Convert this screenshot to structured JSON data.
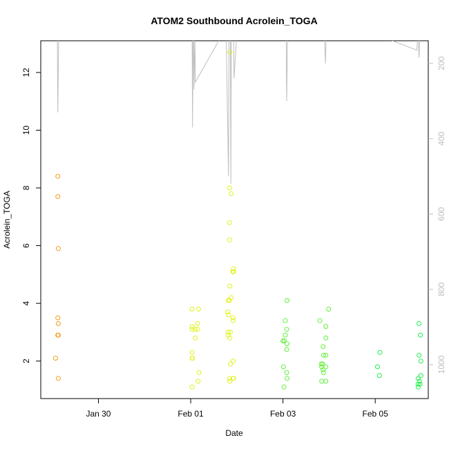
{
  "chart_data": {
    "type": "scatter",
    "title": "ATOM2 Southbound Acrolein_TOGA",
    "xlabel": "Date",
    "ylabel": "Acrolein_TOGA",
    "x_unit": "days from Jan 30",
    "xlim": [
      -1.25,
      7.15
    ],
    "ylim": [
      0.7,
      13.1
    ],
    "x_ticks": [
      {
        "value": 0,
        "label": "Jan 30"
      },
      {
        "value": 2,
        "label": "Feb 01"
      },
      {
        "value": 4,
        "label": "Feb 03"
      },
      {
        "value": 6,
        "label": "Feb 05"
      }
    ],
    "y_ticks": [
      {
        "value": 2,
        "label": "2"
      },
      {
        "value": 4,
        "label": "4"
      },
      {
        "value": 6,
        "label": "6"
      },
      {
        "value": 8,
        "label": "8"
      },
      {
        "value": 10,
        "label": "10"
      },
      {
        "value": 12,
        "label": "12"
      }
    ],
    "right_axis": {
      "description": "secondary axis (grey), reversed",
      "lim": [
        1090,
        140
      ],
      "ticks": [
        {
          "value": 200,
          "label": "200"
        },
        {
          "value": 400,
          "label": "400"
        },
        {
          "value": 600,
          "label": "600"
        },
        {
          "value": 800,
          "label": "800"
        },
        {
          "value": 1000,
          "label": "1000"
        }
      ],
      "color": "#bdbdbd",
      "series": [
        {
          "x": -0.92,
          "y": 120
        },
        {
          "x": -0.89,
          "y": 120
        },
        {
          "x": -0.88,
          "y": 330
        },
        {
          "x": -0.86,
          "y": 120
        },
        {
          "x": 1.95,
          "y": 120
        },
        {
          "x": 2.03,
          "y": 120
        },
        {
          "x": 2.04,
          "y": 370
        },
        {
          "x": 2.05,
          "y": 130
        },
        {
          "x": 2.06,
          "y": 130
        },
        {
          "x": 2.07,
          "y": 270
        },
        {
          "x": 2.09,
          "y": 120
        },
        {
          "x": 2.1,
          "y": 250
        },
        {
          "x": 2.7,
          "y": 120
        },
        {
          "x": 2.77,
          "y": 130
        },
        {
          "x": 2.82,
          "y": 500
        },
        {
          "x": 2.83,
          "y": 130
        },
        {
          "x": 2.86,
          "y": 130
        },
        {
          "x": 2.87,
          "y": 520
        },
        {
          "x": 2.88,
          "y": 130
        },
        {
          "x": 2.93,
          "y": 130
        },
        {
          "x": 2.94,
          "y": 240
        },
        {
          "x": 3.0,
          "y": 120
        },
        {
          "x": 4.05,
          "y": 120
        },
        {
          "x": 4.07,
          "y": 120
        },
        {
          "x": 4.08,
          "y": 300
        },
        {
          "x": 4.1,
          "y": 120
        },
        {
          "x": 4.9,
          "y": 120
        },
        {
          "x": 4.92,
          "y": 200
        },
        {
          "x": 4.94,
          "y": 120
        },
        {
          "x": 5.95,
          "y": 120
        },
        {
          "x": 6.9,
          "y": 165
        },
        {
          "x": 6.93,
          "y": 120
        },
        {
          "x": 6.95,
          "y": 185
        },
        {
          "x": 6.97,
          "y": 120
        }
      ]
    },
    "series": [
      {
        "color": "#f39c1a",
        "points": [
          {
            "x": -0.93,
            "y": 2.1
          },
          {
            "x": -0.88,
            "y": 8.4
          },
          {
            "x": -0.88,
            "y": 7.7
          },
          {
            "x": -0.87,
            "y": 5.9
          },
          {
            "x": -0.88,
            "y": 3.5
          },
          {
            "x": -0.87,
            "y": 3.3
          },
          {
            "x": -0.88,
            "y": 2.9
          },
          {
            "x": -0.87,
            "y": 2.9
          },
          {
            "x": -0.87,
            "y": 1.4
          }
        ]
      },
      {
        "color": "#e0f21a",
        "points": [
          {
            "x": 2.03,
            "y": 3.8
          },
          {
            "x": 2.17,
            "y": 3.8
          },
          {
            "x": 2.03,
            "y": 3.2
          },
          {
            "x": 2.03,
            "y": 3.1
          },
          {
            "x": 2.1,
            "y": 3.1
          },
          {
            "x": 2.15,
            "y": 3.3
          },
          {
            "x": 2.15,
            "y": 3.1
          },
          {
            "x": 2.1,
            "y": 2.8
          },
          {
            "x": 2.03,
            "y": 2.3
          },
          {
            "x": 2.03,
            "y": 2.1
          },
          {
            "x": 2.04,
            "y": 2.1
          },
          {
            "x": 2.18,
            "y": 1.6
          },
          {
            "x": 2.16,
            "y": 1.3
          },
          {
            "x": 2.03,
            "y": 1.1
          },
          {
            "x": 2.85,
            "y": 12.7
          },
          {
            "x": 2.84,
            "y": 8.0
          },
          {
            "x": 2.88,
            "y": 7.8
          },
          {
            "x": 2.84,
            "y": 6.8
          },
          {
            "x": 2.84,
            "y": 6.2
          },
          {
            "x": 2.93,
            "y": 5.2
          },
          {
            "x": 2.91,
            "y": 5.1
          },
          {
            "x": 2.93,
            "y": 5.1
          },
          {
            "x": 2.85,
            "y": 4.6
          },
          {
            "x": 2.88,
            "y": 4.2
          },
          {
            "x": 2.81,
            "y": 4.1
          },
          {
            "x": 2.84,
            "y": 4.1
          },
          {
            "x": 2.8,
            "y": 3.7
          },
          {
            "x": 2.82,
            "y": 3.6
          },
          {
            "x": 2.92,
            "y": 3.5
          },
          {
            "x": 2.92,
            "y": 3.4
          },
          {
            "x": 2.81,
            "y": 3.0
          },
          {
            "x": 2.86,
            "y": 3.0
          },
          {
            "x": 2.81,
            "y": 2.9
          },
          {
            "x": 2.85,
            "y": 2.8
          },
          {
            "x": 2.92,
            "y": 2.0
          },
          {
            "x": 2.86,
            "y": 1.9
          },
          {
            "x": 2.84,
            "y": 1.4
          },
          {
            "x": 2.92,
            "y": 1.4
          },
          {
            "x": 2.93,
            "y": 1.4
          },
          {
            "x": 2.85,
            "y": 1.3
          }
        ]
      },
      {
        "color": "#5ff03a",
        "points": [
          {
            "x": 4.09,
            "y": 4.1
          },
          {
            "x": 4.05,
            "y": 3.4
          },
          {
            "x": 4.08,
            "y": 3.1
          },
          {
            "x": 4.05,
            "y": 2.9
          },
          {
            "x": 4.0,
            "y": 2.7
          },
          {
            "x": 4.03,
            "y": 2.7
          },
          {
            "x": 4.09,
            "y": 2.6
          },
          {
            "x": 4.08,
            "y": 2.4
          },
          {
            "x": 4.01,
            "y": 1.8
          },
          {
            "x": 4.08,
            "y": 1.6
          },
          {
            "x": 4.09,
            "y": 1.4
          },
          {
            "x": 4.02,
            "y": 1.1
          },
          {
            "x": 4.8,
            "y": 3.4
          },
          {
            "x": 4.99,
            "y": 3.8
          },
          {
            "x": 4.93,
            "y": 3.2
          },
          {
            "x": 4.93,
            "y": 2.8
          },
          {
            "x": 4.87,
            "y": 2.5
          },
          {
            "x": 4.88,
            "y": 2.2
          },
          {
            "x": 4.93,
            "y": 2.2
          },
          {
            "x": 4.83,
            "y": 1.9
          },
          {
            "x": 4.86,
            "y": 1.9
          },
          {
            "x": 4.84,
            "y": 1.8
          },
          {
            "x": 4.93,
            "y": 1.8
          },
          {
            "x": 4.87,
            "y": 1.7
          },
          {
            "x": 4.88,
            "y": 1.6
          },
          {
            "x": 4.84,
            "y": 1.3
          },
          {
            "x": 4.93,
            "y": 1.3
          }
        ]
      },
      {
        "color": "#1fef4a",
        "points": [
          {
            "x": 6.1,
            "y": 2.3
          },
          {
            "x": 6.05,
            "y": 1.8
          },
          {
            "x": 6.09,
            "y": 1.5
          },
          {
            "x": 6.95,
            "y": 3.3
          },
          {
            "x": 6.98,
            "y": 2.9
          },
          {
            "x": 6.95,
            "y": 2.2
          },
          {
            "x": 6.99,
            "y": 2.0
          },
          {
            "x": 6.99,
            "y": 1.5
          },
          {
            "x": 6.93,
            "y": 1.4
          },
          {
            "x": 6.96,
            "y": 1.3
          },
          {
            "x": 6.93,
            "y": 1.2
          },
          {
            "x": 6.97,
            "y": 1.2
          },
          {
            "x": 6.93,
            "y": 1.1
          }
        ]
      }
    ]
  }
}
